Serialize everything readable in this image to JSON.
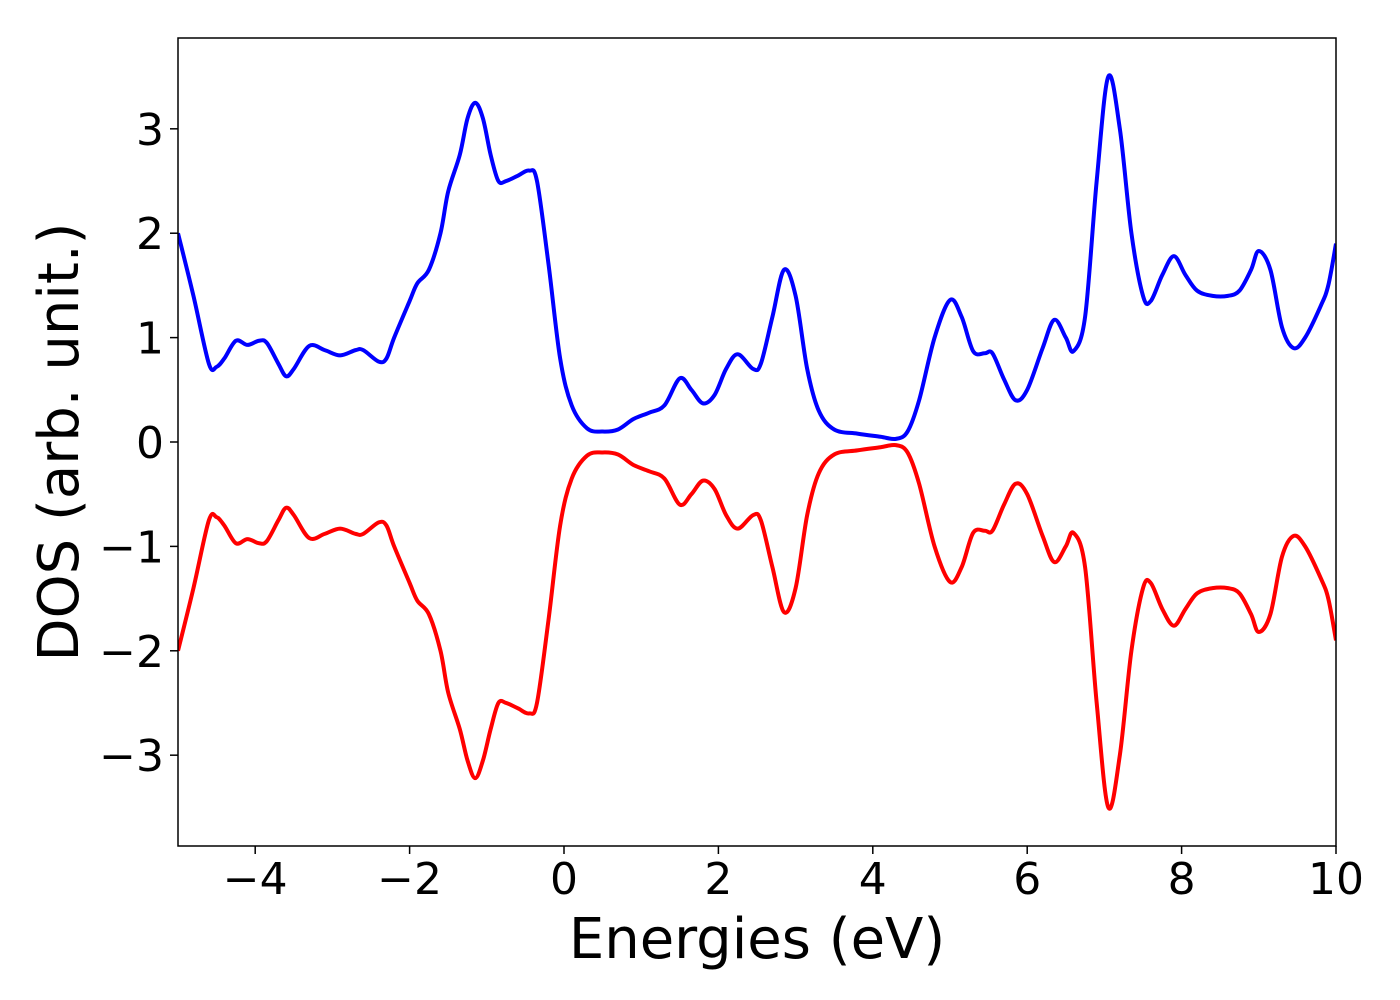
{
  "chart_data": {
    "type": "line",
    "xlabel": "Energies (eV)",
    "ylabel": "DOS (arb. unit.)",
    "x": [
      -5,
      -4.8,
      -4.6,
      -4.5,
      -4.4,
      -4.25,
      -4.1,
      -3.95,
      -3.85,
      -3.7,
      -3.6,
      -3.5,
      -3.3,
      -3.1,
      -2.9,
      -2.7,
      -2.6,
      -2.4,
      -2.3,
      -2.2,
      -2.0,
      -1.9,
      -1.75,
      -1.6,
      -1.5,
      -1.35,
      -1.25,
      -1.15,
      -1.05,
      -0.95,
      -0.85,
      -0.75,
      -0.6,
      -0.45,
      -0.35,
      -0.2,
      -0.05,
      0.1,
      0.3,
      0.5,
      0.7,
      0.9,
      1.1,
      1.3,
      1.5,
      1.65,
      1.8,
      1.95,
      2.1,
      2.25,
      2.45,
      2.55,
      2.7,
      2.85,
      3.0,
      3.15,
      3.3,
      3.5,
      3.8,
      4.1,
      4.3,
      4.45,
      4.6,
      4.8,
      5.0,
      5.15,
      5.3,
      5.45,
      5.55,
      5.7,
      5.85,
      6.0,
      6.2,
      6.35,
      6.5,
      6.6,
      6.75,
      6.9,
      7.05,
      7.2,
      7.35,
      7.5,
      7.6,
      7.75,
      7.9,
      8.05,
      8.2,
      8.4,
      8.6,
      8.75,
      8.9,
      9.0,
      9.15,
      9.3,
      9.45,
      9.6,
      9.8,
      9.9,
      10.0
    ],
    "series": [
      {
        "color": "#0000ff",
        "values": [
          2.0,
          1.4,
          0.75,
          0.72,
          0.8,
          0.97,
          0.93,
          0.97,
          0.95,
          0.75,
          0.63,
          0.7,
          0.92,
          0.88,
          0.83,
          0.88,
          0.88,
          0.77,
          0.8,
          1.0,
          1.35,
          1.52,
          1.65,
          2.0,
          2.4,
          2.75,
          3.1,
          3.25,
          3.1,
          2.75,
          2.5,
          2.5,
          2.55,
          2.6,
          2.5,
          1.7,
          0.8,
          0.35,
          0.13,
          0.1,
          0.12,
          0.22,
          0.28,
          0.35,
          0.61,
          0.5,
          0.37,
          0.45,
          0.7,
          0.84,
          0.7,
          0.75,
          1.2,
          1.65,
          1.4,
          0.7,
          0.3,
          0.12,
          0.08,
          0.05,
          0.03,
          0.1,
          0.4,
          1.0,
          1.36,
          1.2,
          0.87,
          0.85,
          0.85,
          0.6,
          0.4,
          0.5,
          0.9,
          1.17,
          1.0,
          0.87,
          1.2,
          2.5,
          3.5,
          3.0,
          2.0,
          1.4,
          1.35,
          1.6,
          1.78,
          1.6,
          1.45,
          1.4,
          1.4,
          1.45,
          1.65,
          1.83,
          1.65,
          1.1,
          0.9,
          1.0,
          1.3,
          1.5,
          1.9
        ]
      },
      {
        "color": "#ff0000",
        "values": [
          -2.0,
          -1.4,
          -0.75,
          -0.72,
          -0.8,
          -0.97,
          -0.93,
          -0.97,
          -0.95,
          -0.75,
          -0.63,
          -0.7,
          -0.92,
          -0.88,
          -0.83,
          -0.88,
          -0.88,
          -0.77,
          -0.8,
          -1.0,
          -1.35,
          -1.52,
          -1.65,
          -2.0,
          -2.4,
          -2.75,
          -3.05,
          -3.22,
          -3.05,
          -2.75,
          -2.5,
          -2.5,
          -2.55,
          -2.6,
          -2.5,
          -1.7,
          -0.8,
          -0.35,
          -0.13,
          -0.1,
          -0.12,
          -0.22,
          -0.28,
          -0.35,
          -0.6,
          -0.5,
          -0.37,
          -0.45,
          -0.7,
          -0.83,
          -0.7,
          -0.75,
          -1.2,
          -1.63,
          -1.4,
          -0.7,
          -0.3,
          -0.12,
          -0.08,
          -0.05,
          -0.03,
          -0.1,
          -0.4,
          -1.0,
          -1.34,
          -1.2,
          -0.87,
          -0.85,
          -0.85,
          -0.6,
          -0.4,
          -0.5,
          -0.9,
          -1.15,
          -1.0,
          -0.87,
          -1.2,
          -2.5,
          -3.5,
          -3.0,
          -2.0,
          -1.4,
          -1.35,
          -1.6,
          -1.76,
          -1.6,
          -1.45,
          -1.4,
          -1.4,
          -1.45,
          -1.65,
          -1.82,
          -1.65,
          -1.1,
          -0.9,
          -1.0,
          -1.3,
          -1.5,
          -1.9
        ]
      }
    ],
    "xlim": [
      -5,
      10
    ],
    "xticks": [
      {
        "value": -4,
        "label": "−4"
      },
      {
        "value": -2,
        "label": "−2"
      },
      0,
      2,
      4,
      6,
      8,
      10
    ],
    "ylim": [
      -3.87,
      3.87
    ],
    "yticks": [
      {
        "value": -3,
        "label": "−3"
      },
      {
        "value": -2,
        "label": "−2"
      },
      {
        "value": -1,
        "label": "−1"
      },
      0,
      1,
      2,
      3
    ]
  }
}
